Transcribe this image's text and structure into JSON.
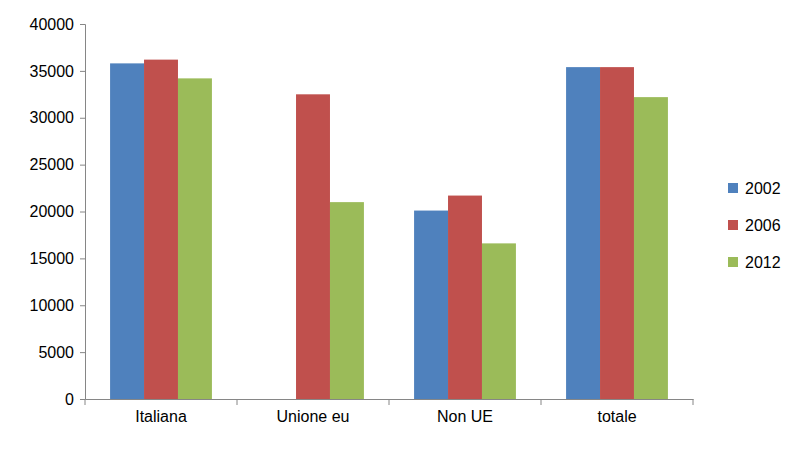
{
  "chart_data": {
    "type": "bar",
    "categories": [
      "Italiana",
      "Unione eu",
      "Non UE",
      "totale"
    ],
    "series": [
      {
        "name": "2002",
        "color": "#4f81bd",
        "values": [
          35800,
          null,
          20100,
          35400
        ]
      },
      {
        "name": "2006",
        "color": "#c0504d",
        "values": [
          36200,
          32500,
          21700,
          35400
        ]
      },
      {
        "name": "2012",
        "color": "#9bbb59",
        "values": [
          34200,
          21000,
          16600,
          32200
        ]
      }
    ],
    "ylim": [
      0,
      40000
    ],
    "yticks": [
      0,
      5000,
      10000,
      15000,
      20000,
      25000,
      30000,
      35000,
      40000
    ],
    "grid": false,
    "legend": "right"
  }
}
